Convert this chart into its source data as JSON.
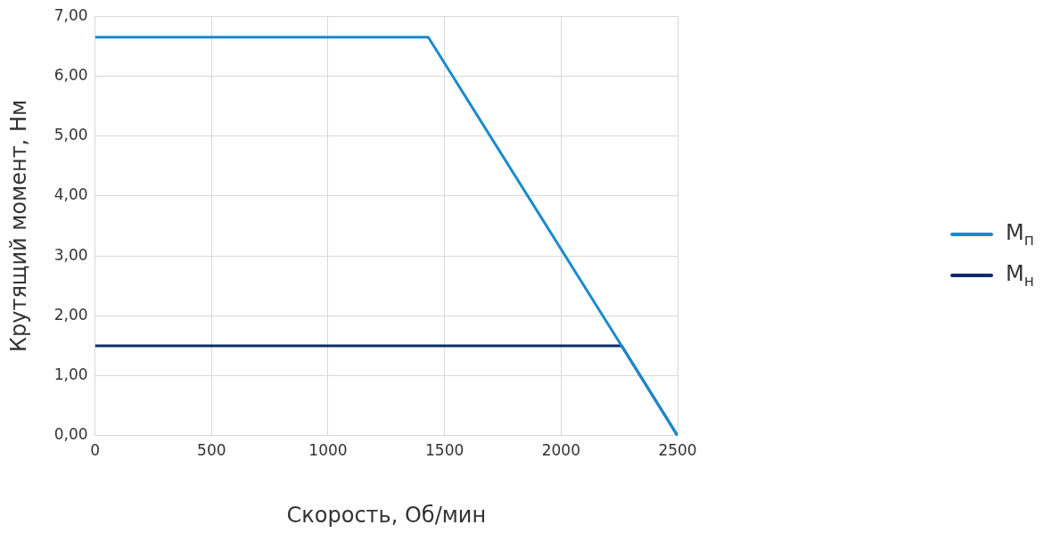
{
  "chart_data": {
    "type": "line",
    "xlabel": "Скорость, Об/мин",
    "ylabel": "Крутящий момент, Нм",
    "xlim": [
      0,
      2500
    ],
    "xticks": [
      0,
      500,
      1000,
      1500,
      2000,
      2500
    ],
    "ylim": [
      0,
      7
    ],
    "yticks": [
      {
        "value": 0,
        "label": "0,00"
      },
      {
        "value": 1,
        "label": "1,00"
      },
      {
        "value": 2,
        "label": "2,00"
      },
      {
        "value": 3,
        "label": "3,00"
      },
      {
        "value": 4,
        "label": "4,00"
      },
      {
        "value": 5,
        "label": "5,00"
      },
      {
        "value": 6,
        "label": "6,00"
      },
      {
        "value": 7,
        "label": "7,00"
      }
    ],
    "grid": true,
    "legend": "right",
    "marker": "none",
    "line_style": "solid",
    "series": [
      {
        "name": "М$_{п}$",
        "color": "#1a8ad0",
        "x": [
          0,
          1430,
          2260,
          2500
        ],
        "values": [
          6.65,
          6.65,
          1.5,
          0
        ]
      },
      {
        "name": "М$_{н}$",
        "color": "#0e2d6b",
        "x": [
          0,
          2260,
          2500
        ],
        "values": [
          1.5,
          1.5,
          0
        ]
      }
    ]
  }
}
